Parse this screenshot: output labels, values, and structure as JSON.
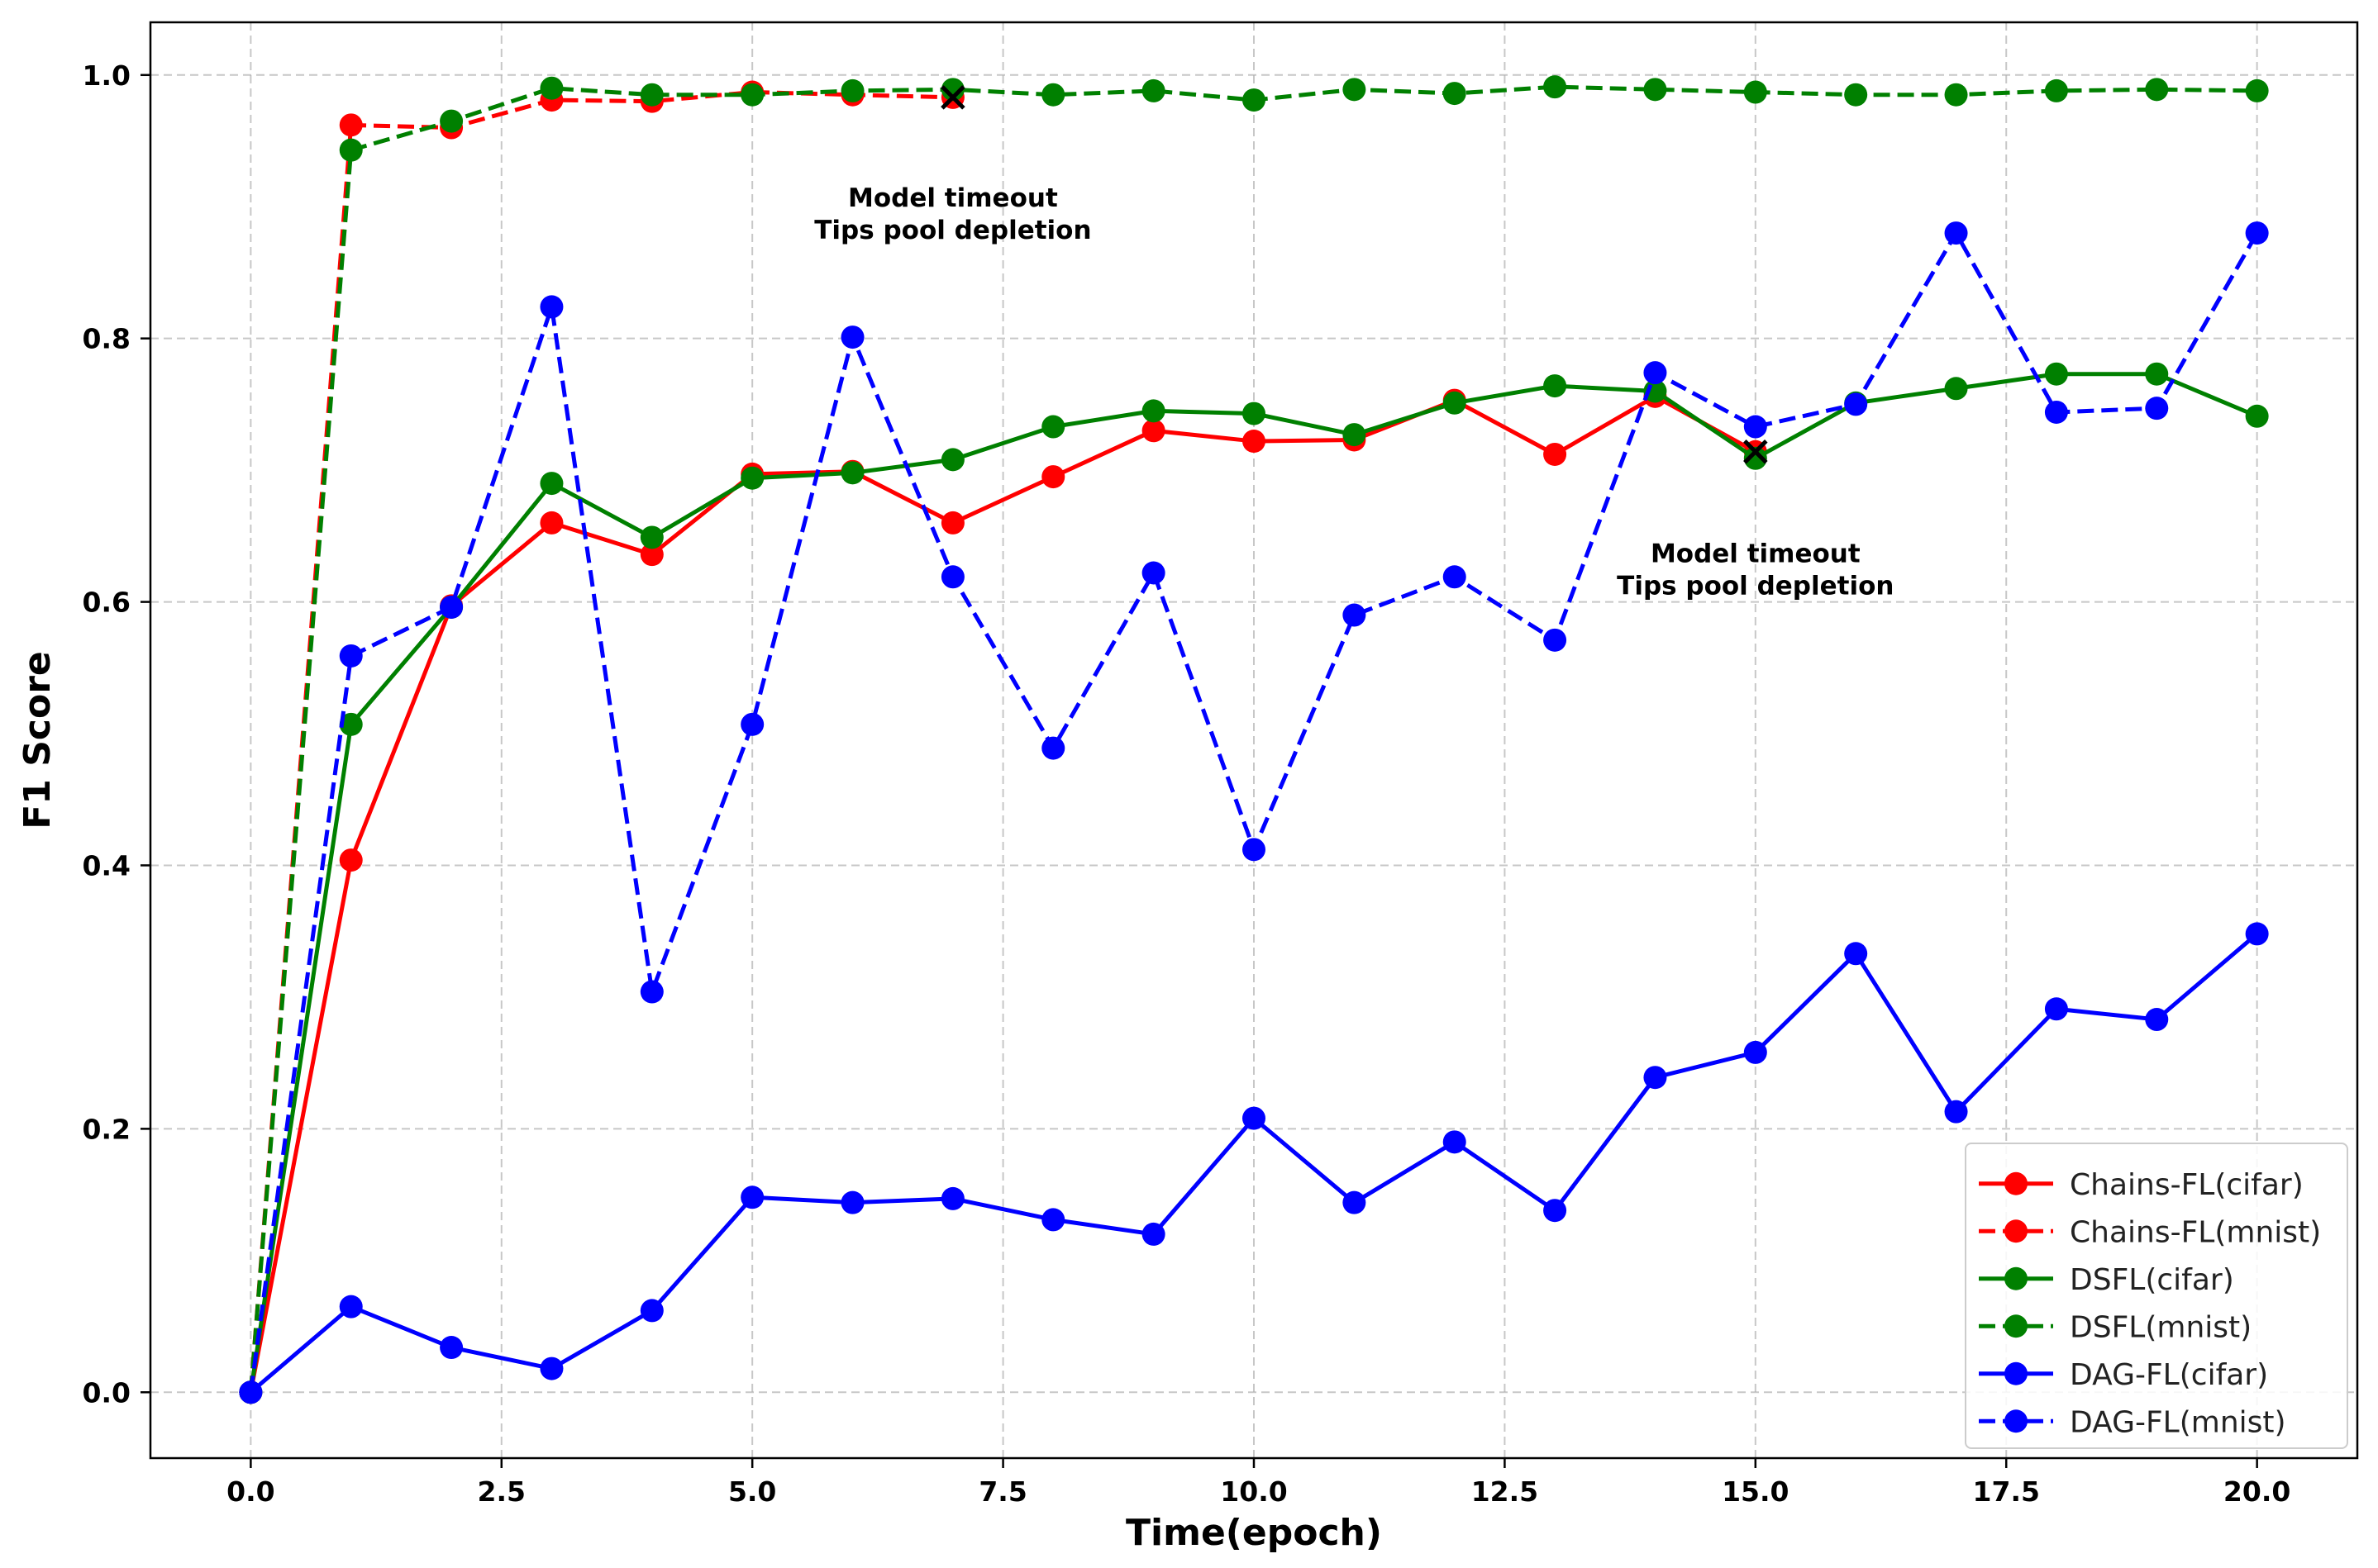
{
  "chart_data": {
    "type": "line",
    "title": "",
    "xlabel": "Time(epoch)",
    "ylabel": "F1 Score",
    "xlim": [
      -1.0,
      21.0
    ],
    "ylim": [
      -0.05,
      1.04
    ],
    "xticks": [
      0.0,
      2.5,
      5.0,
      7.5,
      10.0,
      12.5,
      15.0,
      17.5,
      20.0
    ],
    "xtick_labels": [
      "0.0",
      "2.5",
      "5.0",
      "7.5",
      "10.0",
      "12.5",
      "15.0",
      "17.5",
      "20.0"
    ],
    "yticks": [
      0.0,
      0.2,
      0.4,
      0.6,
      0.8,
      1.0
    ],
    "ytick_labels": [
      "0.0",
      "0.2",
      "0.4",
      "0.6",
      "0.8",
      "1.0"
    ],
    "grid": true,
    "legend_position": "bottom-right",
    "series": [
      {
        "name": "Chains-FL(cifar)",
        "color": "#ff0000",
        "style": "solid",
        "x": [
          0,
          1,
          2,
          3,
          4,
          5,
          6,
          7,
          8,
          9,
          10,
          11,
          12,
          13,
          14,
          15
        ],
        "values": [
          0.0,
          0.404,
          0.597,
          0.66,
          0.636,
          0.697,
          0.699,
          0.66,
          0.695,
          0.73,
          0.722,
          0.723,
          0.753,
          0.712,
          0.756,
          0.714
        ]
      },
      {
        "name": "Chains-FL(mnist)",
        "color": "#ff0000",
        "style": "dashed",
        "x": [
          0,
          1,
          2,
          3,
          4,
          5,
          6,
          7
        ],
        "values": [
          0.0,
          0.962,
          0.96,
          0.981,
          0.98,
          0.987,
          0.985,
          0.983
        ]
      },
      {
        "name": "DSFL(cifar)",
        "color": "#008000",
        "style": "solid",
        "x": [
          0,
          1,
          2,
          3,
          4,
          5,
          6,
          7,
          8,
          9,
          10,
          11,
          12,
          13,
          14,
          15,
          16,
          17,
          18,
          19,
          20
        ],
        "values": [
          0.0,
          0.507,
          0.596,
          0.69,
          0.649,
          0.694,
          0.698,
          0.708,
          0.733,
          0.745,
          0.743,
          0.727,
          0.751,
          0.764,
          0.76,
          0.709,
          0.751,
          0.762,
          0.773,
          0.773,
          0.741
        ]
      },
      {
        "name": "DSFL(mnist)",
        "color": "#008000",
        "style": "dashed",
        "x": [
          0,
          1,
          2,
          3,
          4,
          5,
          6,
          7,
          8,
          9,
          10,
          11,
          12,
          13,
          14,
          15,
          16,
          17,
          18,
          19,
          20
        ],
        "values": [
          0.0,
          0.943,
          0.965,
          0.99,
          0.985,
          0.985,
          0.988,
          0.989,
          0.985,
          0.988,
          0.981,
          0.989,
          0.986,
          0.991,
          0.989,
          0.987,
          0.985,
          0.985,
          0.988,
          0.989,
          0.988
        ]
      },
      {
        "name": "DAG-FL(cifar)",
        "color": "#0000ff",
        "style": "solid",
        "x": [
          0,
          1,
          2,
          3,
          4,
          5,
          6,
          7,
          8,
          9,
          10,
          11,
          12,
          13,
          14,
          15,
          16,
          17,
          18,
          19,
          20
        ],
        "values": [
          0.0,
          0.065,
          0.034,
          0.018,
          0.062,
          0.148,
          0.144,
          0.147,
          0.131,
          0.12,
          0.208,
          0.144,
          0.19,
          0.138,
          0.239,
          0.258,
          0.333,
          0.213,
          0.291,
          0.283,
          0.348
        ]
      },
      {
        "name": "DAG-FL(mnist)",
        "color": "#0000ff",
        "style": "dashed",
        "x": [
          0,
          1,
          2,
          3,
          4,
          5,
          6,
          7,
          8,
          9,
          10,
          11,
          12,
          13,
          14,
          15,
          16,
          17,
          18,
          19,
          20
        ],
        "values": [
          0.0,
          0.559,
          0.596,
          0.824,
          0.304,
          0.507,
          0.801,
          0.619,
          0.489,
          0.622,
          0.412,
          0.59,
          0.619,
          0.571,
          0.774,
          0.733,
          0.75,
          0.88,
          0.744,
          0.747,
          0.88
        ]
      }
    ],
    "markers": [
      {
        "name": "chains-mnist-end",
        "x": 7,
        "y": 0.983,
        "symbol": "x"
      },
      {
        "name": "chains-cifar-end",
        "x": 15,
        "y": 0.714,
        "symbol": "x"
      }
    ],
    "annotations": [
      {
        "x": 7.0,
        "y": 0.9,
        "lines": [
          "Model timeout",
          "Tips pool depletion"
        ]
      },
      {
        "x": 15.0,
        "y": 0.63,
        "lines": [
          "Model timeout",
          "Tips pool depletion"
        ]
      }
    ]
  }
}
